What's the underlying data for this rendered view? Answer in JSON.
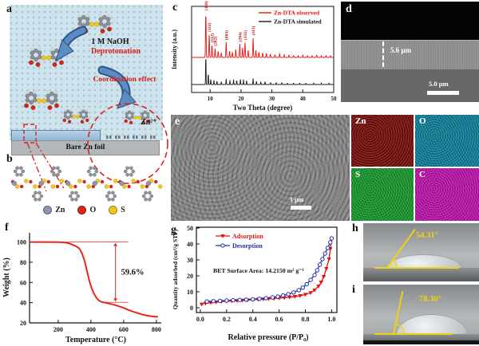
{
  "panels": {
    "a": {
      "label": "a",
      "naoh": "1 M NaOH",
      "deprotonation": "Deprotonation",
      "coordination": "Coordination effect",
      "zn_ion": "Zn²⁺",
      "foil": "Bare Zn foil"
    },
    "b": {
      "label": "b",
      "legend": [
        {
          "name": "Zn",
          "color": "#9095b0"
        },
        {
          "name": "O",
          "color": "#d9251a"
        },
        {
          "name": "S",
          "color": "#eec81e"
        }
      ]
    },
    "c": {
      "label": "c"
    },
    "d": {
      "label": "d",
      "thickness": "5.6 μm",
      "scalebar": "5.0 μm"
    },
    "e": {
      "label": "e",
      "scalebar": "1 μm"
    },
    "eds": [
      {
        "element": "Zn",
        "color": "#760d0a"
      },
      {
        "element": "O",
        "color": "#0e7f99"
      },
      {
        "element": "S",
        "color": "#16992c"
      },
      {
        "element": "C",
        "color": "#bd12ab"
      }
    ],
    "f": {
      "label": "f"
    },
    "g": {
      "label": "g"
    },
    "h": {
      "label": "h",
      "angle": "54.31°"
    },
    "i": {
      "label": "i",
      "angle": "78.30°"
    }
  },
  "chart_data": [
    {
      "id": "xrd",
      "type": "line",
      "title": "",
      "xlabel": "Two Theta (degree)",
      "ylabel": "Intensity (a.u.)",
      "xlim": [
        4,
        50
      ],
      "xticks": [
        10,
        20,
        30,
        40,
        50
      ],
      "legend_position": "top-right",
      "peak_labels": [
        [
          "(110)",
          8.6
        ],
        [
          "(111)",
          9.7
        ],
        [
          "(112)",
          10.6
        ],
        [
          "(202)",
          11.6
        ],
        [
          "(004)",
          15.2
        ],
        [
          "(204)",
          19.6
        ],
        [
          "(131)",
          21.3
        ],
        [
          "(113)",
          23.9
        ]
      ],
      "series": [
        {
          "name": "Zn-DTA observed",
          "color": "#e8120c",
          "peaks": [
            [
              8.6,
              100
            ],
            [
              9.7,
              52
            ],
            [
              10.6,
              28
            ],
            [
              11.6,
              20
            ],
            [
              12.6,
              14
            ],
            [
              13.6,
              10
            ],
            [
              15.2,
              34
            ],
            [
              16.3,
              14
            ],
            [
              17.2,
              12
            ],
            [
              18.3,
              18
            ],
            [
              19.6,
              30
            ],
            [
              20.5,
              22
            ],
            [
              21.3,
              34
            ],
            [
              22.3,
              16
            ],
            [
              23.9,
              44
            ],
            [
              24.8,
              16
            ],
            [
              25.8,
              12
            ],
            [
              27,
              10
            ],
            [
              28.2,
              9
            ],
            [
              29.5,
              7
            ],
            [
              31,
              6
            ],
            [
              32.5,
              8
            ],
            [
              34,
              6
            ],
            [
              35.5,
              5
            ],
            [
              37,
              4
            ],
            [
              38.5,
              4
            ],
            [
              40,
              5
            ],
            [
              41.5,
              4
            ],
            [
              43,
              4
            ],
            [
              44.5,
              5
            ],
            [
              46,
              4
            ],
            [
              47.5,
              4
            ],
            [
              49,
              4
            ]
          ]
        },
        {
          "name": "Zn-DTA simulated",
          "color": "#1a1a1a",
          "peaks": [
            [
              8.6,
              42
            ],
            [
              9.4,
              16
            ],
            [
              10.2,
              8
            ],
            [
              11.2,
              6
            ],
            [
              12.2,
              5
            ],
            [
              13.6,
              4
            ],
            [
              15.2,
              8
            ],
            [
              16.4,
              6
            ],
            [
              17.6,
              7
            ],
            [
              18.6,
              6
            ],
            [
              19.8,
              8
            ],
            [
              20.8,
              7
            ],
            [
              21.8,
              6
            ],
            [
              23.9,
              9
            ],
            [
              25,
              5
            ],
            [
              26.4,
              4
            ],
            [
              27.8,
              4
            ],
            [
              29.6,
              3
            ],
            [
              31.4,
              3
            ],
            [
              33.2,
              3
            ],
            [
              35,
              2
            ],
            [
              37,
              2
            ],
            [
              39,
              2
            ],
            [
              41,
              2
            ],
            [
              43.5,
              2
            ],
            [
              46,
              2
            ],
            [
              48.5,
              2
            ]
          ]
        }
      ]
    },
    {
      "id": "tga",
      "type": "line",
      "xlabel": "Temperature (°C)",
      "ylabel": "Weight (%)",
      "xlim": [
        25,
        820
      ],
      "ylim": [
        20,
        106
      ],
      "xticks": [
        200,
        400,
        600,
        800
      ],
      "yticks": [
        20,
        40,
        60,
        80,
        100
      ],
      "annotation": {
        "text": "59.6%",
        "x": 550,
        "y_top": 100,
        "y_bottom": 40.3
      },
      "series": [
        {
          "name": "Zn-DTA weight loss",
          "color": "#e8261f",
          "points": [
            [
              25,
              100
            ],
            [
              120,
              100
            ],
            [
              200,
              99.9
            ],
            [
              240,
              99.6
            ],
            [
              265,
              98.8
            ],
            [
              290,
              97.2
            ],
            [
              310,
              95.8
            ],
            [
              330,
              93.5
            ],
            [
              345,
              89
            ],
            [
              360,
              82
            ],
            [
              375,
              72
            ],
            [
              390,
              62
            ],
            [
              405,
              54
            ],
            [
              420,
              48.5
            ],
            [
              435,
              44.5
            ],
            [
              450,
              42
            ],
            [
              465,
              40.8
            ],
            [
              480,
              40.2
            ],
            [
              510,
              39.2
            ],
            [
              540,
              38
            ],
            [
              570,
              36.5
            ],
            [
              600,
              34.8
            ],
            [
              630,
              32.8
            ],
            [
              660,
              31
            ],
            [
              690,
              29.5
            ],
            [
              720,
              28
            ],
            [
              750,
              27
            ],
            [
              780,
              26.3
            ],
            [
              810,
              26
            ]
          ]
        }
      ]
    },
    {
      "id": "bet",
      "type": "scatter",
      "xlabel": "Relative pressure (P/P₀)",
      "ylabel": "Quantity adsorbed (cm³/g STP)",
      "xlim": [
        0,
        1
      ],
      "ylim": [
        0,
        50
      ],
      "xticks": [
        0,
        0.2,
        0.4,
        0.6,
        0.8,
        1
      ],
      "yticks": [
        0,
        10,
        20,
        30,
        40,
        50
      ],
      "note": "BET Surface Area: 14.2150 m² g⁻¹",
      "series": [
        {
          "name": "Adsorption",
          "color": "#e8120c",
          "marker": "triangle-filled",
          "points": [
            [
              0.01,
              2.2
            ],
            [
              0.04,
              2.8
            ],
            [
              0.08,
              3.2
            ],
            [
              0.12,
              3.5
            ],
            [
              0.16,
              3.8
            ],
            [
              0.2,
              4
            ],
            [
              0.24,
              4.2
            ],
            [
              0.28,
              4.4
            ],
            [
              0.32,
              4.6
            ],
            [
              0.36,
              4.8
            ],
            [
              0.4,
              5
            ],
            [
              0.44,
              5.2
            ],
            [
              0.48,
              5.4
            ],
            [
              0.52,
              5.6
            ],
            [
              0.56,
              5.8
            ],
            [
              0.6,
              6
            ],
            [
              0.64,
              6.3
            ],
            [
              0.68,
              6.6
            ],
            [
              0.72,
              7
            ],
            [
              0.76,
              7.5
            ],
            [
              0.8,
              8.3
            ],
            [
              0.84,
              9.4
            ],
            [
              0.87,
              11
            ],
            [
              0.9,
              13.5
            ],
            [
              0.92,
              16
            ],
            [
              0.94,
              19.5
            ],
            [
              0.96,
              24.5
            ],
            [
              0.98,
              30.5
            ],
            [
              0.99,
              37
            ],
            [
              1,
              43
            ]
          ]
        },
        {
          "name": "Desorption",
          "color": "#1f2fa6",
          "marker": "circle-open",
          "points": [
            [
              0.05,
              3.9
            ],
            [
              0.1,
              4.1
            ],
            [
              0.15,
              4.3
            ],
            [
              0.2,
              4.5
            ],
            [
              0.25,
              4.7
            ],
            [
              0.3,
              4.9
            ],
            [
              0.35,
              5.1
            ],
            [
              0.4,
              5.3
            ],
            [
              0.45,
              5.6
            ],
            [
              0.5,
              6
            ],
            [
              0.55,
              6.5
            ],
            [
              0.59,
              7
            ],
            [
              0.63,
              7.7
            ],
            [
              0.67,
              8.5
            ],
            [
              0.71,
              9.6
            ],
            [
              0.75,
              11
            ],
            [
              0.78,
              12.6
            ],
            [
              0.81,
              14.8
            ],
            [
              0.84,
              17.5
            ],
            [
              0.87,
              20.5
            ],
            [
              0.89,
              23.5
            ],
            [
              0.91,
              27
            ],
            [
              0.93,
              30.5
            ],
            [
              0.95,
              34
            ],
            [
              0.97,
              37.5
            ],
            [
              0.99,
              41
            ],
            [
              1,
              43.5
            ]
          ]
        }
      ]
    }
  ]
}
